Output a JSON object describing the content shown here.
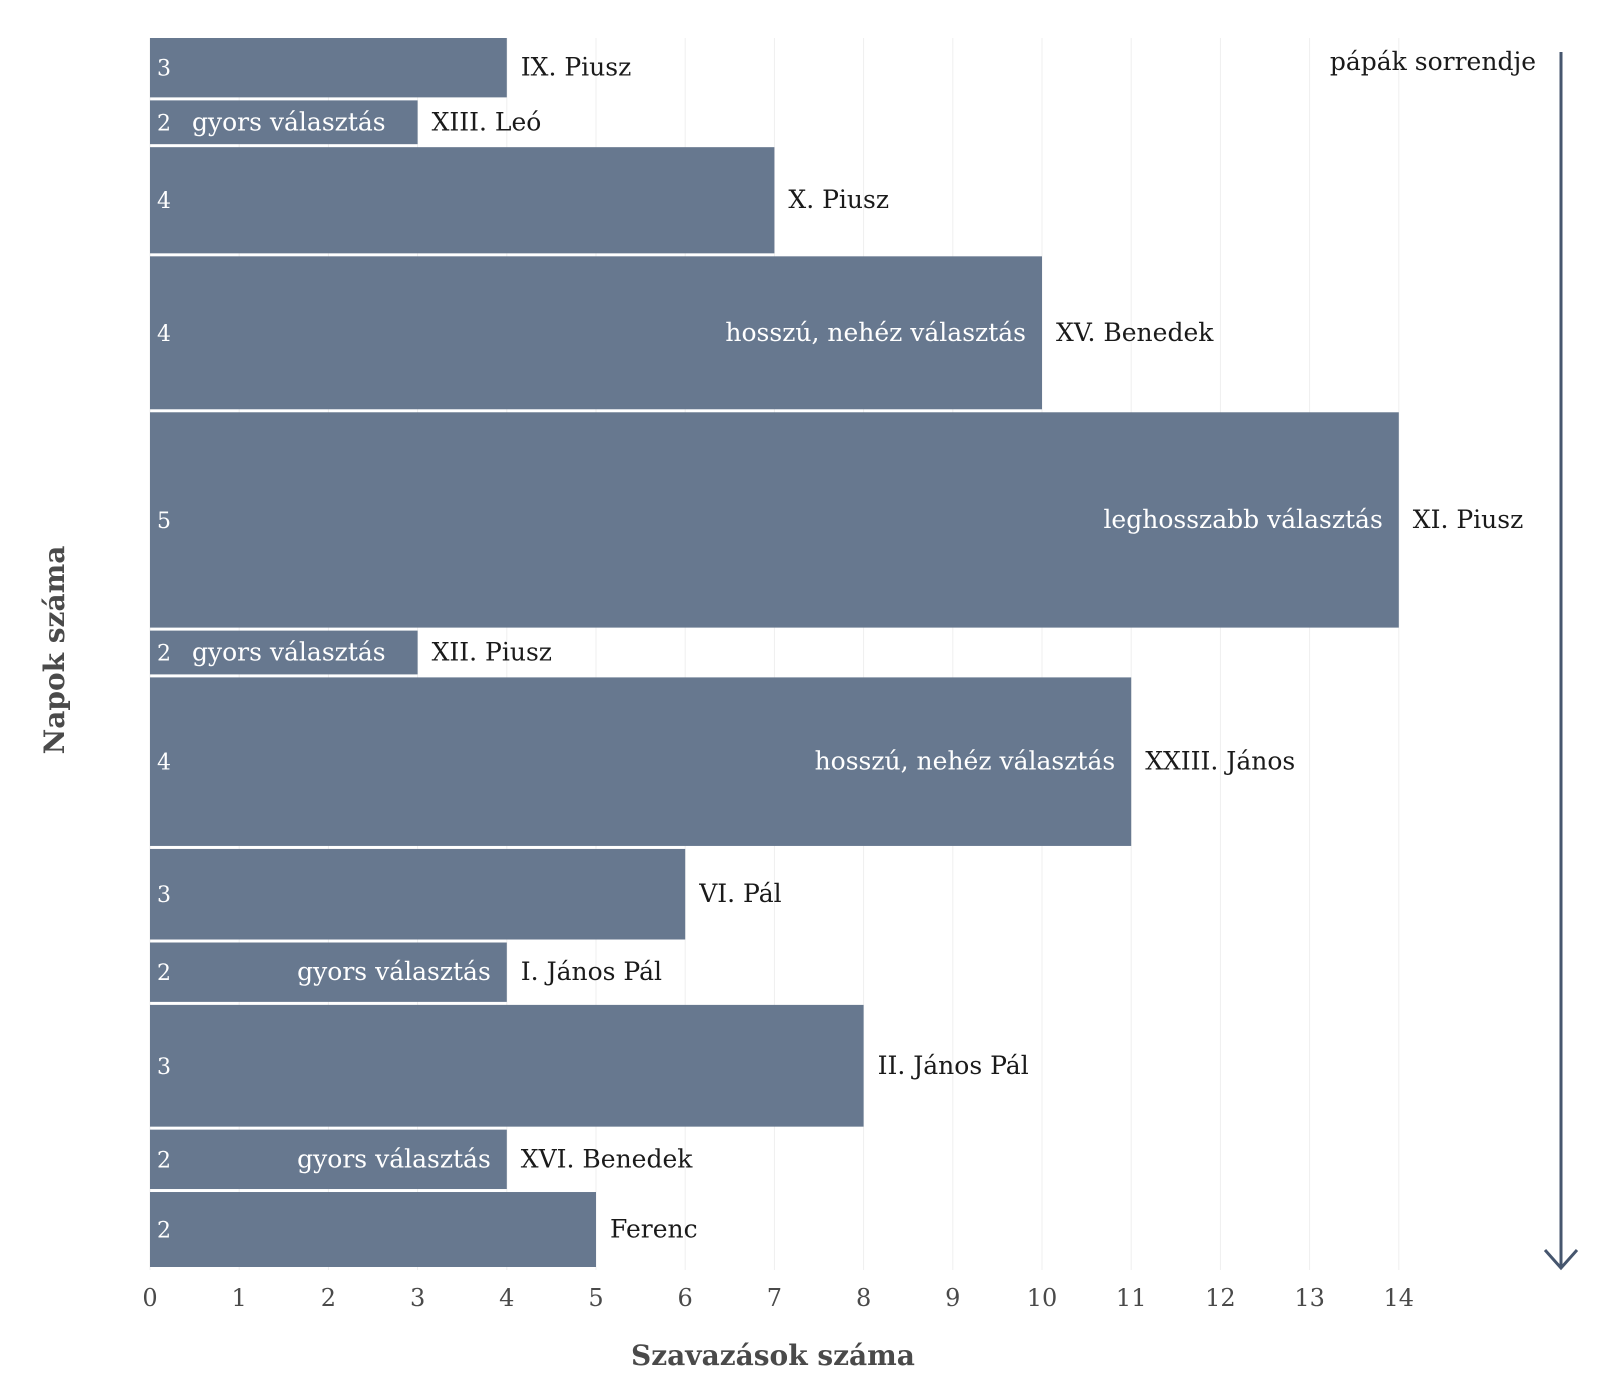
{
  "chart_data": {
    "type": "bar",
    "orientation": "horizontal",
    "xlabel": "Szavazások száma",
    "ylabel": "Napok száma",
    "xlim": [
      0,
      14
    ],
    "x_ticks": [
      0,
      1,
      2,
      3,
      4,
      5,
      6,
      7,
      8,
      9,
      10,
      11,
      12,
      13,
      14
    ],
    "grid": true,
    "bar_color": "#67788f",
    "arrow_color": "#46566e",
    "order_label": "pápák sorrendje",
    "bars": [
      {
        "pope": "IX. Piusz",
        "ballots": 4,
        "days": 3,
        "note": ""
      },
      {
        "pope": "XIII. Leó",
        "ballots": 3,
        "days": 2,
        "note": "gyors választás"
      },
      {
        "pope": "X. Piusz",
        "ballots": 7,
        "days": 4,
        "note": ""
      },
      {
        "pope": "XV. Benedek",
        "ballots": 10,
        "days": 4,
        "note": "hosszú, nehéz választás"
      },
      {
        "pope": "XI. Piusz",
        "ballots": 14,
        "days": 5,
        "note": "leghosszabb választás"
      },
      {
        "pope": "XII. Piusz",
        "ballots": 3,
        "days": 2,
        "note": "gyors választás"
      },
      {
        "pope": "XXIII. János",
        "ballots": 11,
        "days": 4,
        "note": "hosszú, nehéz választás"
      },
      {
        "pope": "VI. Pál",
        "ballots": 6,
        "days": 3,
        "note": ""
      },
      {
        "pope": "I. János Pál",
        "ballots": 4,
        "days": 2,
        "note": "gyors választás"
      },
      {
        "pope": "II. János Pál",
        "ballots": 8,
        "days": 3,
        "note": ""
      },
      {
        "pope": "XVI. Benedek",
        "ballots": 4,
        "days": 2,
        "note": "gyors választás"
      },
      {
        "pope": "Ferenc",
        "ballots": 5,
        "days": 2,
        "note": ""
      }
    ]
  }
}
